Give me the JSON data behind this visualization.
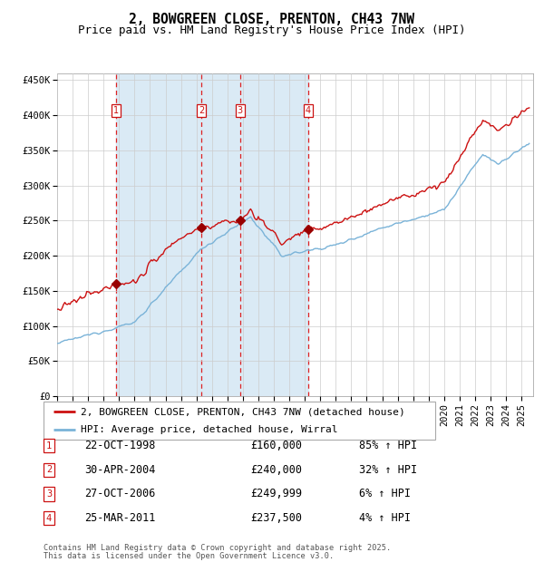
{
  "title": "2, BOWGREEN CLOSE, PRENTON, CH43 7NW",
  "subtitle": "Price paid vs. HM Land Registry's House Price Index (HPI)",
  "legend_line1": "2, BOWGREEN CLOSE, PRENTON, CH43 7NW (detached house)",
  "legend_line2": "HPI: Average price, detached house, Wirral",
  "footer1": "Contains HM Land Registry data © Crown copyright and database right 2025.",
  "footer2": "This data is licensed under the Open Government Licence v3.0.",
  "sales": [
    {
      "num": 1,
      "date": "22-OCT-1998",
      "price": 160000,
      "pct": "85%",
      "dir": "↑"
    },
    {
      "num": 2,
      "date": "30-APR-2004",
      "price": 240000,
      "pct": "32%",
      "dir": "↑"
    },
    {
      "num": 3,
      "date": "27-OCT-2006",
      "price": 249999,
      "pct": "6%",
      "dir": "↑"
    },
    {
      "num": 4,
      "date": "25-MAR-2011",
      "price": 237500,
      "pct": "4%",
      "dir": "↑"
    }
  ],
  "sale_dates_decimal": [
    1998.81,
    2004.33,
    2006.82,
    2011.23
  ],
  "ylim": [
    0,
    460000
  ],
  "yticks": [
    0,
    50000,
    100000,
    150000,
    200000,
    250000,
    300000,
    350000,
    400000,
    450000
  ],
  "ytick_labels": [
    "£0",
    "£50K",
    "£100K",
    "£150K",
    "£200K",
    "£250K",
    "£300K",
    "£350K",
    "£400K",
    "£450K"
  ],
  "xlim_start": 1995.0,
  "xlim_end": 2025.75,
  "xticks": [
    1995,
    1996,
    1997,
    1998,
    1999,
    2000,
    2001,
    2002,
    2003,
    2004,
    2005,
    2006,
    2007,
    2008,
    2009,
    2010,
    2011,
    2012,
    2013,
    2014,
    2015,
    2016,
    2017,
    2018,
    2019,
    2020,
    2021,
    2022,
    2023,
    2024,
    2025
  ],
  "hpi_color": "#7ab3d8",
  "price_color": "#cc1111",
  "marker_color": "#990000",
  "dashed_color": "#dd2222",
  "bg_color": "#daeaf5",
  "grid_color": "#cccccc",
  "box_color": "#cc1111",
  "title_fontsize": 10.5,
  "subtitle_fontsize": 9,
  "axis_fontsize": 7.5,
  "legend_fontsize": 8,
  "table_fontsize": 8.5
}
